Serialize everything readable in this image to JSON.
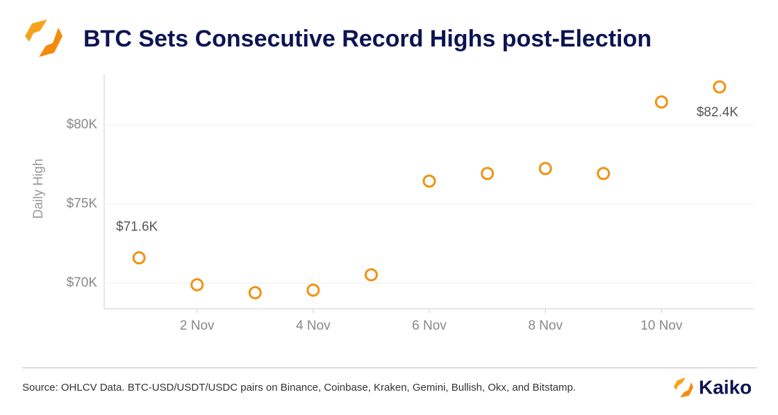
{
  "chart_data": {
    "type": "scatter",
    "title": "BTC Sets Consecutive Record Highs post-Election",
    "ylabel": "Daily High",
    "x": [
      1,
      2,
      3,
      4,
      5,
      6,
      7,
      8,
      9,
      10,
      11
    ],
    "series": [
      {
        "name": "Daily High",
        "color": "#f0920f",
        "values": [
          71600,
          69900,
          69400,
          69560,
          70530,
          76450,
          76930,
          77240,
          76930,
          81450,
          82400
        ],
        "value_labels": [
          "$71.6K",
          null,
          null,
          null,
          null,
          null,
          null,
          null,
          null,
          null,
          "$82.4K"
        ]
      }
    ],
    "xlim": [
      0.4,
      11.6
    ],
    "xticks": [
      {
        "value": 2,
        "label": "2 Nov"
      },
      {
        "value": 4,
        "label": "4 Nov"
      },
      {
        "value": 6,
        "label": "6 Nov"
      },
      {
        "value": 8,
        "label": "8 Nov"
      },
      {
        "value": 10,
        "label": "10 Nov"
      }
    ],
    "ylim": [
      68380,
      83200
    ],
    "yticks": [
      {
        "value": 70000,
        "label": "$70K"
      },
      {
        "value": 75000,
        "label": "$75K"
      },
      {
        "value": 80000,
        "label": "$80K"
      }
    ],
    "grid": true
  },
  "footer": {
    "source": "Source: OHLCV Data. BTC-USD/USDT/USDC pairs on Binance, Coinbase, Kraken, Gemini, Bullish, Okx, and Bitstamp.",
    "brand": "Kaiko"
  }
}
